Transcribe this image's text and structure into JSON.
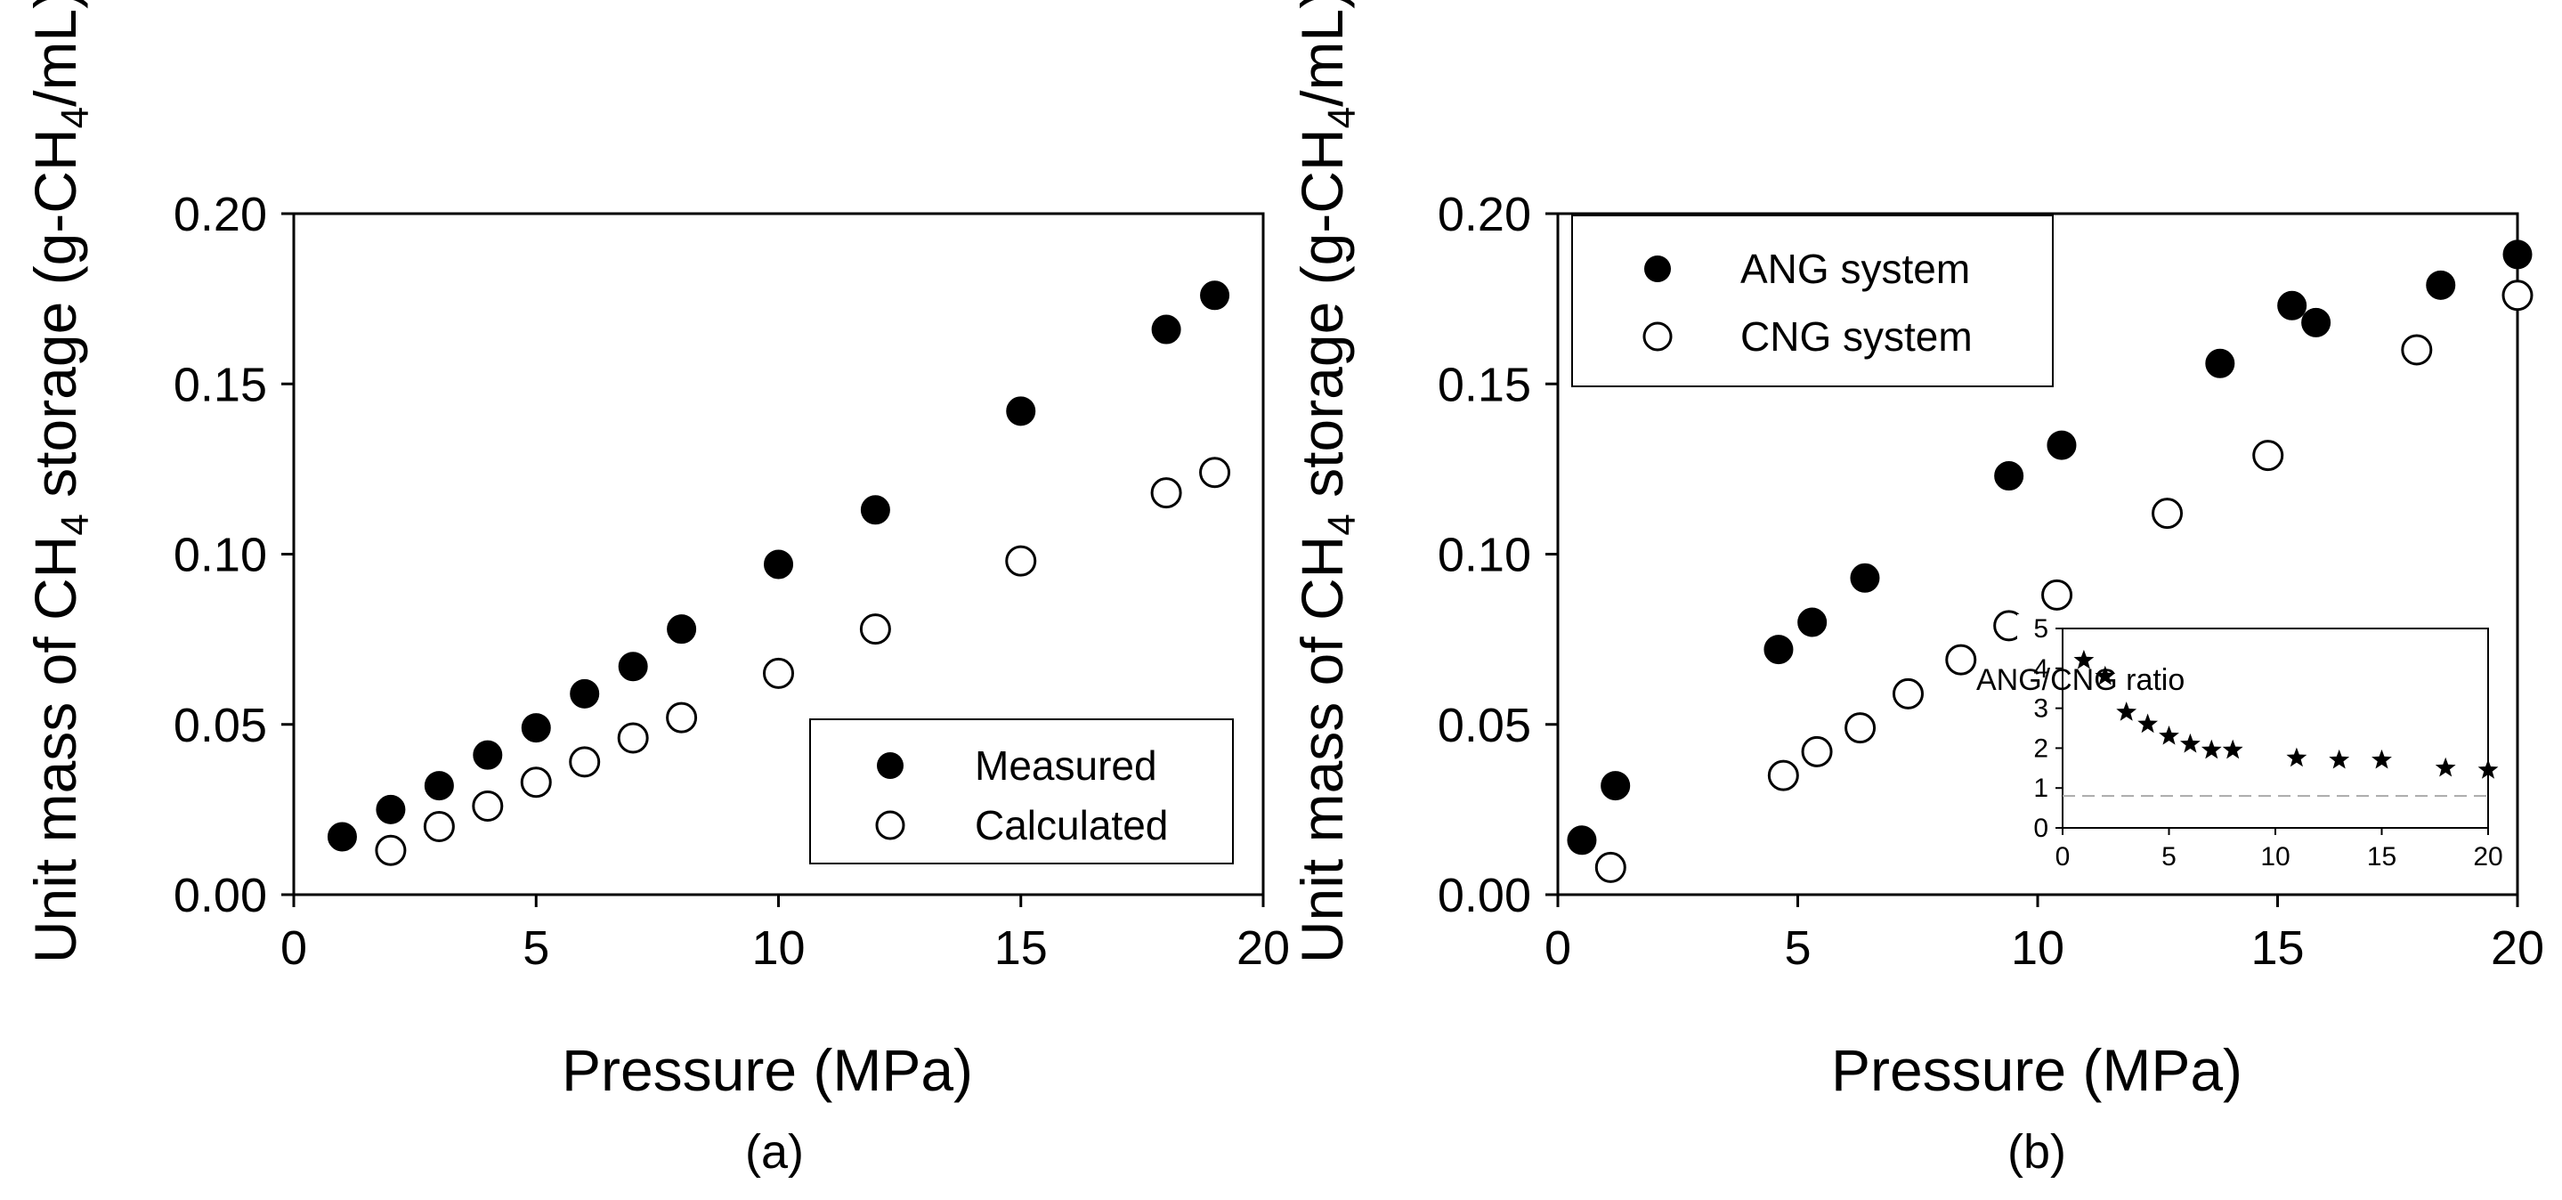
{
  "chart_data": [
    {
      "type": "scatter",
      "panel_label": "(a)",
      "xlabel": "Pressure (MPa)",
      "ylabel": {
        "prefix": "Unit mass of CH",
        "sub": "4",
        "middle": " storage (g-CH",
        "sub2": "4",
        "suffix": "/mL)"
      },
      "xlim": [
        0,
        20
      ],
      "ylim": [
        0,
        0.2
      ],
      "xticks": [
        0,
        5,
        10,
        15,
        20
      ],
      "yticks": [
        0,
        0.05,
        0.1,
        0.15,
        0.2
      ],
      "xtick_labels": [
        "0",
        "5",
        "10",
        "15",
        "20"
      ],
      "ytick_labels": [
        "0.00",
        "0.05",
        "0.10",
        "0.15",
        "0.20"
      ],
      "legend_position": "bottom-right",
      "series": [
        {
          "name": "Measured",
          "marker": "filled-circle",
          "x": [
            1,
            2,
            3,
            4,
            5,
            6,
            7,
            8,
            10,
            12,
            15,
            18,
            19
          ],
          "y": [
            0.017,
            0.025,
            0.032,
            0.041,
            0.049,
            0.059,
            0.067,
            0.078,
            0.097,
            0.113,
            0.142,
            0.166,
            0.176
          ]
        },
        {
          "name": "Calculated",
          "marker": "open-circle",
          "x": [
            2,
            3,
            4,
            5,
            6,
            7,
            8,
            10,
            12,
            15,
            18,
            19
          ],
          "y": [
            0.013,
            0.02,
            0.026,
            0.033,
            0.039,
            0.046,
            0.052,
            0.065,
            0.078,
            0.098,
            0.118,
            0.124
          ]
        }
      ]
    },
    {
      "type": "scatter",
      "panel_label": "(b)",
      "xlabel": "Pressure (MPa)",
      "ylabel": {
        "prefix": "Unit mass of CH",
        "sub": "4",
        "middle": " storage (g-CH",
        "sub2": "4",
        "suffix": "/mL)"
      },
      "xlim": [
        0,
        20
      ],
      "ylim": [
        0,
        0.2
      ],
      "xticks": [
        0,
        5,
        10,
        15,
        20
      ],
      "yticks": [
        0,
        0.05,
        0.1,
        0.15,
        0.2
      ],
      "xtick_labels": [
        "0",
        "5",
        "10",
        "15",
        "20"
      ],
      "ytick_labels": [
        "0.00",
        "0.05",
        "0.10",
        "0.15",
        "0.20"
      ],
      "legend_position": "top-left",
      "series": [
        {
          "name": "ANG system",
          "marker": "filled-circle",
          "x": [
            0.5,
            1.2,
            4.6,
            5.3,
            6.4,
            9.4,
            10.5,
            13.8,
            15.3,
            15.8,
            18.4,
            20
          ],
          "y": [
            0.016,
            0.032,
            0.072,
            0.08,
            0.093,
            0.123,
            0.132,
            0.156,
            0.173,
            0.168,
            0.179,
            0.188
          ]
        },
        {
          "name": "CNG system",
          "marker": "open-circle",
          "x": [
            1.1,
            4.7,
            5.4,
            6.3,
            7.3,
            8.4,
            9.4,
            10.4,
            12.7,
            14.8,
            17.9,
            20
          ],
          "y": [
            0.008,
            0.035,
            0.042,
            0.049,
            0.059,
            0.069,
            0.079,
            0.088,
            0.112,
            0.129,
            0.16,
            0.176
          ]
        }
      ],
      "inset": {
        "type": "scatter",
        "label": "ANG/CNG ratio",
        "marker": "star",
        "xlim": [
          0,
          20
        ],
        "ylim": [
          0,
          5
        ],
        "xticks": [
          0,
          5,
          10,
          15,
          20
        ],
        "yticks": [
          0,
          1,
          2,
          3,
          4,
          5
        ],
        "xtick_labels": [
          "0",
          "5",
          "10",
          "15",
          "20"
        ],
        "ytick_labels": [
          "0",
          "1",
          "2",
          "3",
          "4",
          "5"
        ],
        "reference_line_y": 0.8,
        "x": [
          1,
          2,
          3,
          4,
          5,
          6,
          7,
          8,
          11,
          13,
          15,
          18,
          20
        ],
        "y": [
          4.2,
          3.8,
          2.9,
          2.6,
          2.3,
          2.1,
          1.95,
          1.95,
          1.75,
          1.7,
          1.7,
          1.5,
          1.45
        ]
      }
    }
  ]
}
